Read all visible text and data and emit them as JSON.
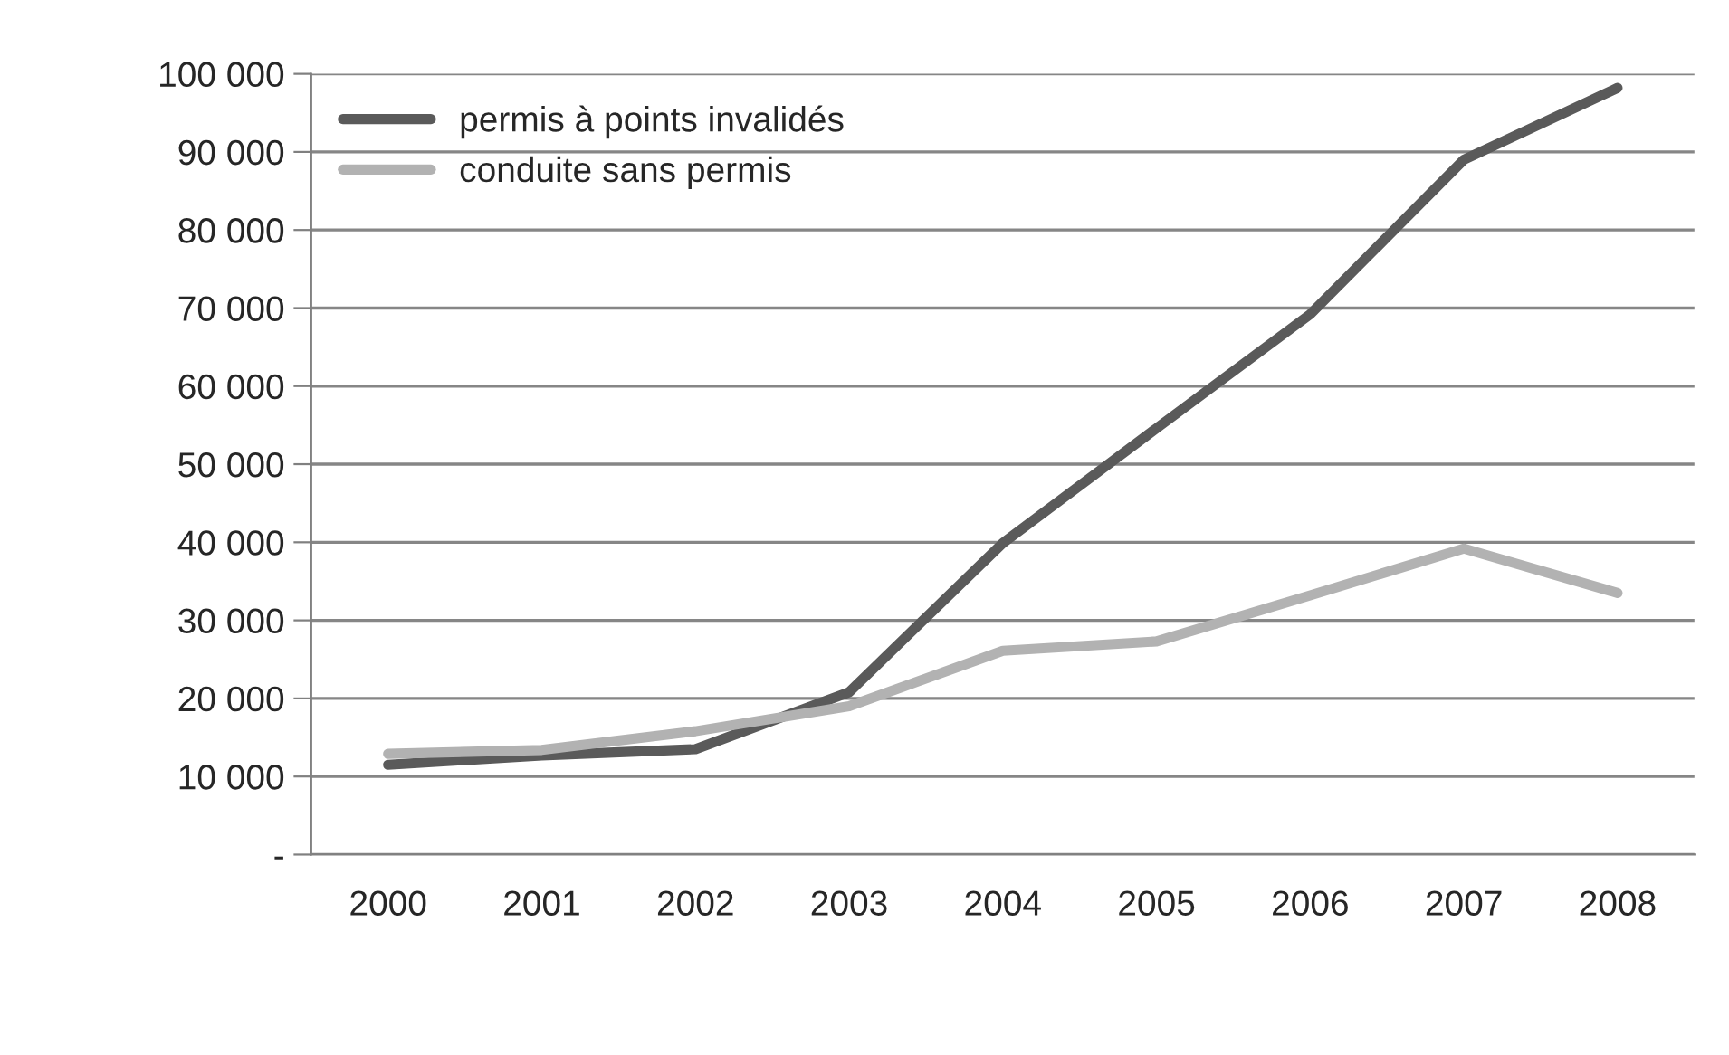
{
  "chart_data": {
    "type": "line",
    "categories": [
      "2000",
      "2001",
      "2002",
      "2003",
      "2004",
      "2005",
      "2006",
      "2007",
      "2008"
    ],
    "series": [
      {
        "name": "permis à points invalidés",
        "color": "#5a5a5a",
        "values": [
          11500,
          12700,
          13500,
          20800,
          39900,
          54600,
          69200,
          89000,
          98200
        ]
      },
      {
        "name": "conduite sans permis",
        "color": "#b2b2b2",
        "values": [
          12900,
          13400,
          15800,
          19000,
          26100,
          27300,
          33200,
          39200,
          33500
        ]
      }
    ],
    "ylim": [
      0,
      100000
    ],
    "yticks": [
      {
        "value": 0,
        "label": "-"
      },
      {
        "value": 10000,
        "label": "10 000"
      },
      {
        "value": 20000,
        "label": "20 000"
      },
      {
        "value": 30000,
        "label": "30 000"
      },
      {
        "value": 40000,
        "label": "40 000"
      },
      {
        "value": 50000,
        "label": "50 000"
      },
      {
        "value": 60000,
        "label": "60 000"
      },
      {
        "value": 70000,
        "label": "70 000"
      },
      {
        "value": 80000,
        "label": "80 000"
      },
      {
        "value": 90000,
        "label": "90 000"
      },
      {
        "value": 100000,
        "label": "100 000"
      }
    ],
    "grid": "y",
    "legend": "top left",
    "marker": "none",
    "line_style": "solid"
  }
}
